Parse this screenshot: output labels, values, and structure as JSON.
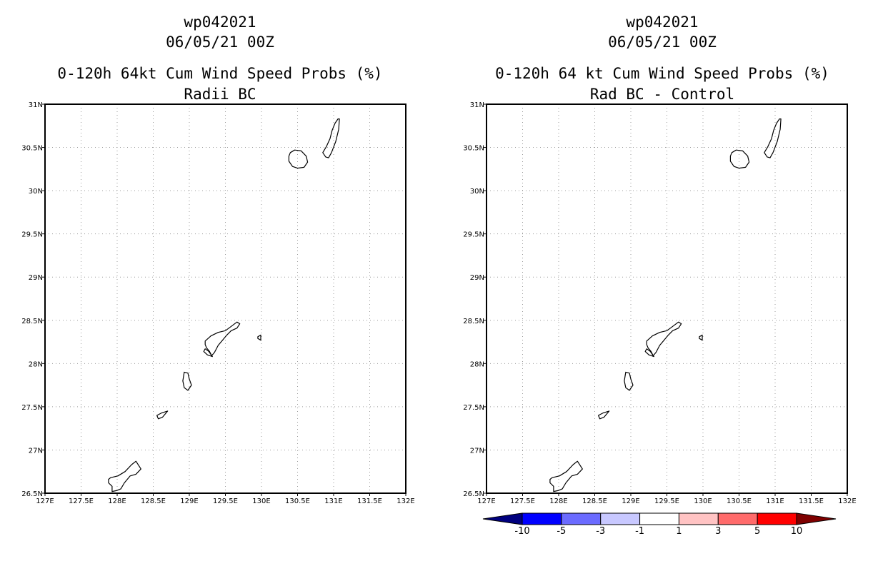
{
  "chart_data": [
    {
      "type": "heatmap",
      "title_lines": [
        "wp042021",
        "06/05/21 00Z",
        "0-120h 64kt Cum Wind Speed Probs (%)",
        "Radii BC"
      ],
      "x_ticks": [
        "127E",
        "127.5E",
        "128E",
        "128.5E",
        "129E",
        "129.5E",
        "130E",
        "130.5E",
        "131E",
        "131.5E",
        "132E"
      ],
      "y_ticks": [
        "26.5N",
        "27N",
        "27.5N",
        "28N",
        "28.5N",
        "29N",
        "29.5N",
        "30N",
        "30.5N",
        "31N"
      ],
      "xlim": [
        127,
        132
      ],
      "ylim": [
        26.5,
        31
      ],
      "grid": true,
      "values": []
    },
    {
      "type": "heatmap",
      "title_lines": [
        "wp042021",
        "06/05/21 00Z",
        "0-120h 64 kt Cum Wind Speed Probs (%)",
        "Rad BC - Control"
      ],
      "x_ticks": [
        "127E",
        "127.5E",
        "128E",
        "128.5E",
        "129E",
        "129.5E",
        "130E",
        "130.5E",
        "131E",
        "131.5E",
        "132E"
      ],
      "y_ticks": [
        "26.5N",
        "27N",
        "27.5N",
        "28N",
        "28.5N",
        "29N",
        "29.5N",
        "30N",
        "30.5N",
        "31N"
      ],
      "xlim": [
        127,
        132
      ],
      "ylim": [
        26.5,
        31
      ],
      "grid": true,
      "values": [],
      "colorbar": {
        "labels": [
          "-10",
          "-5",
          "-3",
          "-1",
          "1",
          "3",
          "5",
          "10"
        ],
        "colors": [
          "#00007f",
          "#0000ff",
          "#6b6bff",
          "#c8c8ff",
          "#ffffff",
          "#ffc3c3",
          "#ff6b6b",
          "#ff0000",
          "#7f0000"
        ]
      }
    }
  ]
}
